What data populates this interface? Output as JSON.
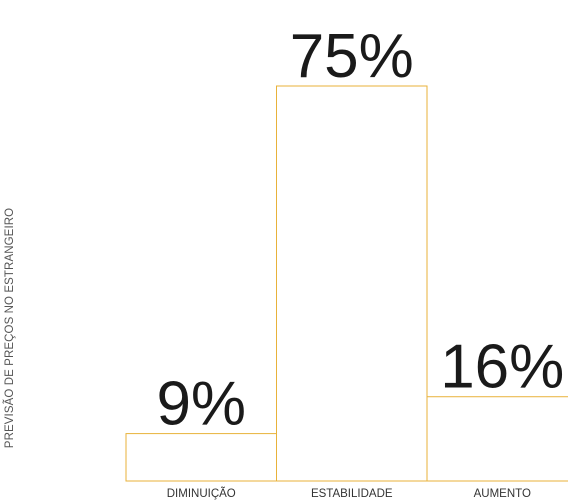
{
  "chart_data": {
    "type": "bar",
    "ylabel": "PREVISÃO DE PREÇOS NO ESTRANGEIRO",
    "categories": [
      "DIMINUIÇÃO",
      "ESTABILIDADE",
      "AUMENTO"
    ],
    "values": [
      9,
      75,
      16
    ],
    "value_labels": [
      "9%",
      "75%",
      "16%"
    ],
    "ylim": [
      0,
      75
    ],
    "grid": false,
    "legend": "none",
    "bar_outline_color": "#e8b23a",
    "bar_fill_color": "#ffffff"
  }
}
